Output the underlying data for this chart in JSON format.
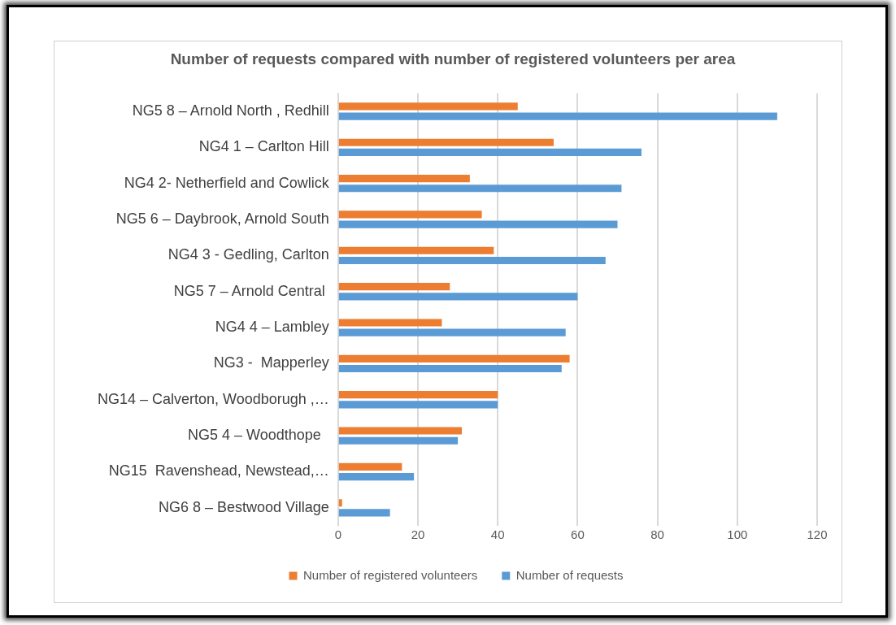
{
  "chart_data": {
    "type": "bar",
    "orientation": "horizontal",
    "title": "Number of requests compared with number of registered volunteers  per area",
    "categories": [
      "NG5 8 – Arnold North , Redhill",
      "NG4 1 – Carlton Hill",
      "NG4 2- Netherfield and Cowlick",
      "NG5 6 – Daybrook, Arnold South",
      "NG4 3 - Gedling, Carlton",
      "NG5 7 – Arnold Central ",
      "NG4 4 – Lambley",
      "NG3 -  Mapperley",
      "NG14 – Calverton, Woodborugh ,…",
      "NG5 4 – Woodthope  ",
      "NG15  Ravenshead, Newstead,…",
      "NG6 8 – Bestwood Village"
    ],
    "series": [
      {
        "name": "Number of registered volunteers",
        "color": "#ed7d31",
        "values": [
          45,
          54,
          33,
          36,
          39,
          28,
          26,
          58,
          40,
          31,
          16,
          1
        ]
      },
      {
        "name": "Number of requests",
        "color": "#5b9bd5",
        "values": [
          110,
          76,
          71,
          70,
          67,
          60,
          57,
          56,
          40,
          30,
          19,
          13
        ]
      }
    ],
    "xlim": [
      0,
      120
    ],
    "xticks": [
      0,
      20,
      40,
      60,
      80,
      100,
      120
    ],
    "grid": "x",
    "legend": "bottom"
  }
}
